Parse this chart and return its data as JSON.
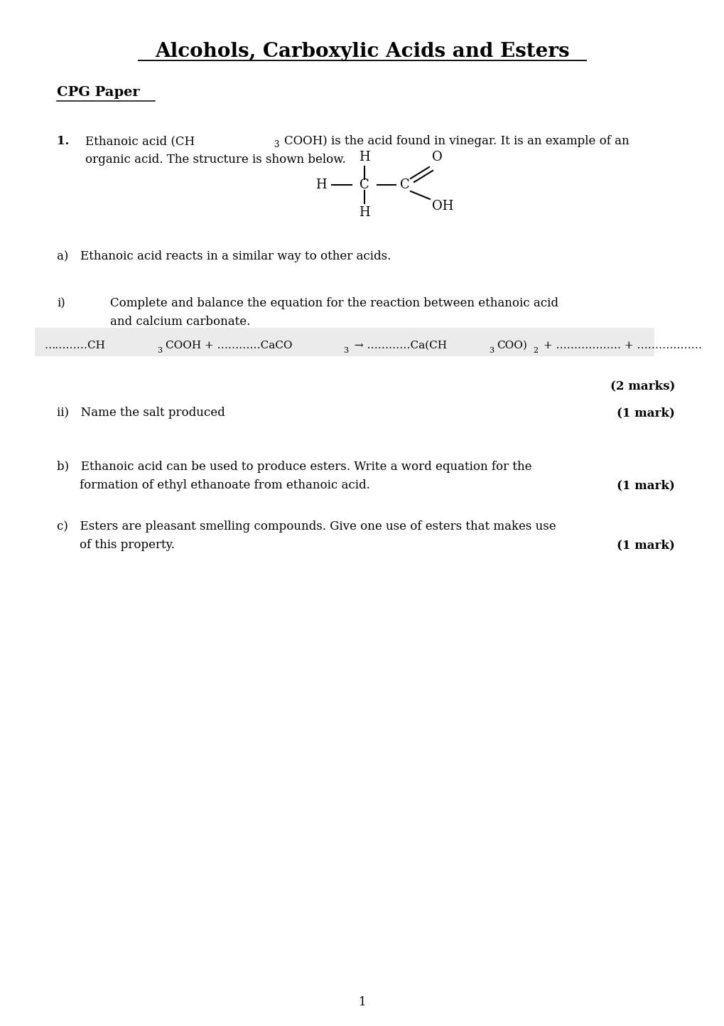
{
  "title": "Alcohols, Carboxylic Acids and Esters",
  "subtitle": "CPG Paper",
  "background_color": "#ffffff",
  "text_color": "#000000",
  "page_number": "1",
  "marks_2": "(2 marks)",
  "qii_marks": "(1 mark)",
  "qb_marks": "(1 mark)",
  "qc_marks": "(1 mark)"
}
